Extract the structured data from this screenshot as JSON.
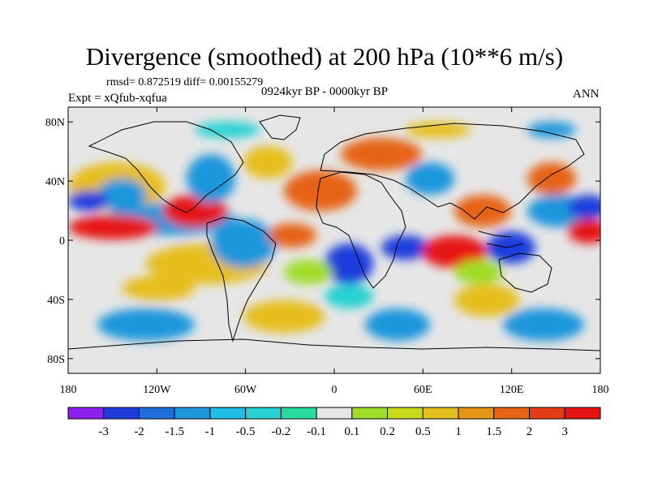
{
  "title": "Divergence (smoothed) at 200 hPa (10**6 m/s)",
  "stats_line": "rmsd= 0.872519 diff= 0.00155279",
  "period": "0924kyr BP - 0000kyr BP",
  "experiment": "Expt = xQfub-xqfua",
  "season": "ANN",
  "lat_ticks": [
    "80N",
    "40N",
    "0",
    "40S",
    "80S"
  ],
  "lon_ticks": [
    "180",
    "120W",
    "60W",
    "0",
    "60E",
    "120E",
    "180"
  ],
  "colorbar": {
    "labels": [
      "-3",
      "-2",
      "-1.5",
      "-1",
      "-0.5",
      "-0.2",
      "-0.1",
      "0.1",
      "0.2",
      "0.5",
      "1",
      "1.5",
      "2",
      "3"
    ],
    "colors": [
      "#8c1ef0",
      "#1e3cdc",
      "#1e6edc",
      "#1e96dc",
      "#1ebee6",
      "#28d2d2",
      "#28dca0",
      "#e6e6e6",
      "#a0dc28",
      "#c8dc1e",
      "#e6be1e",
      "#e69614",
      "#e66414",
      "#e63c14",
      "#e61414"
    ]
  },
  "field_palette": {
    "neutral": "#e6e6e6",
    "strong_pos": "#e61414",
    "pos": "#e66414",
    "weak_pos": "#e6be1e",
    "green_pos": "#a0dc28",
    "weak_neg": "#28d2d2",
    "neg": "#1e96dc",
    "strong_neg": "#1e3cdc"
  }
}
